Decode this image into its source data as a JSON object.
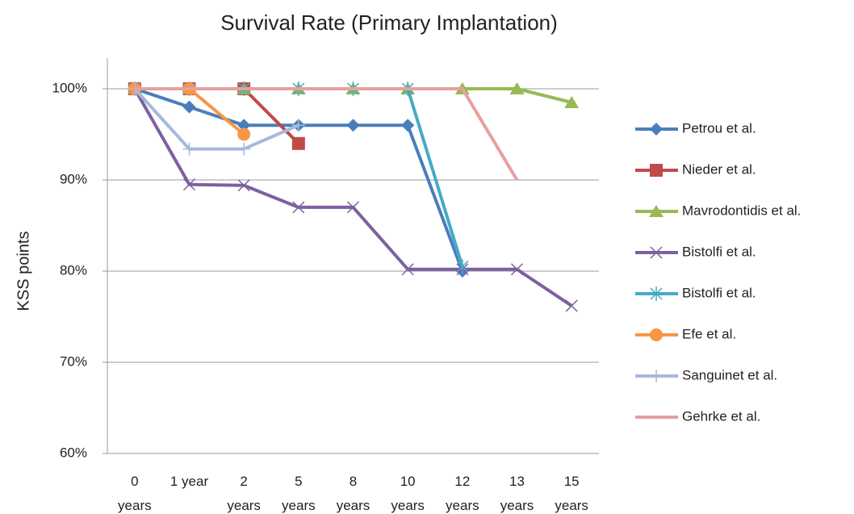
{
  "chart_data": {
    "type": "line",
    "title": "Survival Rate (Primary Implantation)",
    "y_label": "KSS points",
    "categories": [
      "0 years",
      "1 year",
      "2 years",
      "5 years",
      "8 years",
      "10 years",
      "12 years",
      "13 years",
      "15 years"
    ],
    "ylim": [
      60,
      100
    ],
    "yticks": [
      {
        "value": 60,
        "label": "60%"
      },
      {
        "value": 70,
        "label": "70%"
      },
      {
        "value": 80,
        "label": "80%"
      },
      {
        "value": 90,
        "label": "90%"
      },
      {
        "value": 100,
        "label": "100%"
      }
    ],
    "grid": true,
    "legend": "right",
    "series": [
      {
        "name": "Petrou et al.",
        "color": "#4a7ebb",
        "marker": "diamond",
        "values": [
          100,
          98,
          96,
          96,
          96,
          96,
          80,
          null,
          null
        ]
      },
      {
        "name": "Nieder et al.",
        "color": "#be4b48",
        "marker": "square",
        "values": [
          100,
          100,
          100,
          94,
          null,
          null,
          null,
          null,
          null
        ]
      },
      {
        "name": "Mavrodontidis et al.",
        "color": "#98b954",
        "marker": "triangle",
        "values": [
          100,
          100,
          100,
          100,
          100,
          100,
          100,
          100,
          98.5
        ]
      },
      {
        "name": "Bistolfi et al.",
        "color": "#7d60a0",
        "marker": "x",
        "values": [
          100,
          89.5,
          89.4,
          87,
          87,
          80.2,
          80.2,
          80.2,
          76.2
        ]
      },
      {
        "name": "Bistolfi et al.",
        "color": "#46aac5",
        "marker": "asterisk",
        "values": [
          100,
          100,
          100,
          100,
          100,
          100,
          80.5,
          null,
          null
        ]
      },
      {
        "name": "Efe et al.",
        "color": "#f79646",
        "marker": "circle",
        "values": [
          100,
          100,
          95,
          null,
          null,
          null,
          null,
          null,
          null
        ]
      },
      {
        "name": "Sanguinet et al.",
        "color": "#a5b9dd",
        "marker": "plus",
        "values": [
          100,
          93.4,
          93.4,
          96,
          null,
          null,
          null,
          null,
          null
        ]
      },
      {
        "name": "Gehrke et al.",
        "color": "#e6a09e",
        "marker": "none",
        "values": [
          100,
          100,
          100,
          100,
          100,
          100,
          100,
          90,
          null
        ]
      }
    ]
  }
}
